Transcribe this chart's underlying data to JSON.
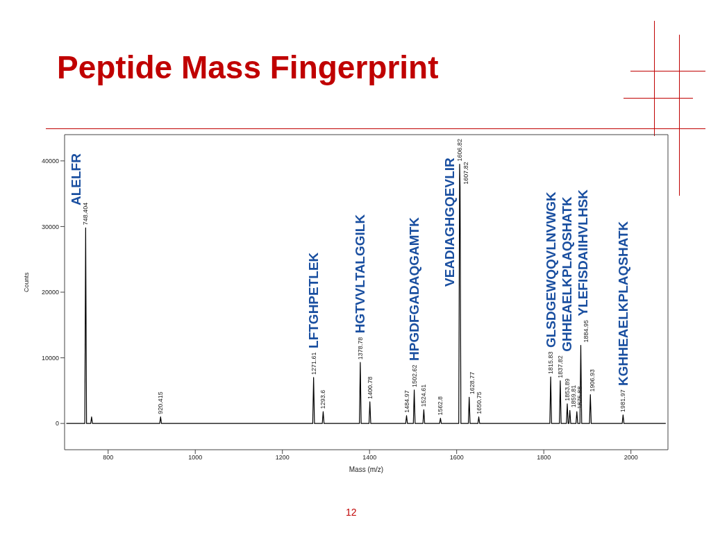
{
  "chart_data": {
    "type": "line",
    "title": "Peptide Mass Fingerprint",
    "xlabel": "Mass (m/z)",
    "ylabel": "Counts",
    "xlim": [
      700,
      2085
    ],
    "xticks": [
      800,
      1000,
      1200,
      1400,
      1600,
      1800,
      2000
    ],
    "ylim": [
      -4000,
      44000
    ],
    "yticks": [
      0,
      10000,
      20000,
      30000,
      40000
    ],
    "color": "#000000",
    "x": [
      704,
      746.4,
      748.404,
      750.4,
      760,
      762,
      764,
      918.4,
      920.415,
      922.4,
      1269.6,
      1271.61,
      1273.6,
      1291.6,
      1293.6,
      1295.6,
      1376.8,
      1378.78,
      1380.8,
      1398.8,
      1400.78,
      1402.8,
      1483,
      1484.97,
      1487,
      1500.6,
      1502.62,
      1504.6,
      1522.6,
      1524.61,
      1526.6,
      1560.8,
      1562.8,
      1564.8,
      1604.8,
      1606.82,
      1607.82,
      1609.8,
      1626.8,
      1628.77,
      1630.8,
      1648.8,
      1650.75,
      1652.8,
      1813.8,
      1815.83,
      1817.8,
      1835.8,
      1837.82,
      1839.8,
      1851.9,
      1853.89,
      1855.9,
      1857.8,
      1859.81,
      1861.8,
      1873.9,
      1875.88,
      1877.9,
      1883,
      1884.95,
      1887,
      1904.9,
      1906.93,
      1908.9,
      1980,
      1981.97,
      1984,
      2080
    ],
    "values": [
      0,
      0,
      29800,
      0,
      0,
      1000,
      0,
      0,
      1000,
      0,
      0,
      7000,
      0,
      0,
      1800,
      0,
      0,
      9300,
      0,
      0,
      3300,
      0,
      0,
      1200,
      0,
      0,
      5100,
      0,
      0,
      2100,
      0,
      0,
      800,
      0,
      0,
      39500,
      36000,
      0,
      0,
      4000,
      0,
      0,
      1000,
      0,
      0,
      7100,
      0,
      0,
      6500,
      0,
      0,
      3000,
      0,
      0,
      2000,
      0,
      0,
      1800,
      0,
      0,
      11900,
      0,
      0,
      4400,
      0,
      0,
      1300,
      0,
      0
    ],
    "annotations": [
      {
        "text": "748.404",
        "x": 748.404,
        "y": 29800
      },
      {
        "text": "920.415",
        "x": 920.415,
        "y": 1000
      },
      {
        "text": "1271.61",
        "x": 1271.61,
        "y": 7000
      },
      {
        "text": "1293.6",
        "x": 1293.6,
        "y": 1800
      },
      {
        "text": "1378.78",
        "x": 1378.78,
        "y": 9300
      },
      {
        "text": "1400.78",
        "x": 1400.78,
        "y": 3300
      },
      {
        "text": "1484.97",
        "x": 1484.97,
        "y": 1200
      },
      {
        "text": "1502.62",
        "x": 1502.62,
        "y": 5100
      },
      {
        "text": "1524.61",
        "x": 1524.61,
        "y": 2100
      },
      {
        "text": "1562.8",
        "x": 1562.8,
        "y": 800
      },
      {
        "text": "1606.82",
        "x": 1606.82,
        "y": 39500
      },
      {
        "text": "1607.82",
        "x": 1607.82,
        "y": 36000
      },
      {
        "text": "1628.77",
        "x": 1628.77,
        "y": 4000
      },
      {
        "text": "1650.75",
        "x": 1650.75,
        "y": 1000
      },
      {
        "text": "1815.83",
        "x": 1815.83,
        "y": 7100
      },
      {
        "text": "1837.82",
        "x": 1837.82,
        "y": 6500
      },
      {
        "text": "1853.89",
        "x": 1853.89,
        "y": 3000
      },
      {
        "text": "1859.81",
        "x": 1859.81,
        "y": 2000
      },
      {
        "text": "1875.88",
        "x": 1875.88,
        "y": 1800
      },
      {
        "text": "1884.95",
        "x": 1884.95,
        "y": 11900
      },
      {
        "text": "1906.93",
        "x": 1906.93,
        "y": 4400
      },
      {
        "text": "1981.97",
        "x": 1981.97,
        "y": 1300
      },
      {
        "text": "ALELFR",
        "x": 748.404,
        "y": 29800
      },
      {
        "text": "LFTGHPETLEK",
        "x": 1271.61,
        "y": 7000
      },
      {
        "text": "HGTVVLTALGGILK",
        "x": 1378.78,
        "y": 9300
      },
      {
        "text": "HPGDFGADAQGAMTK",
        "x": 1502.62,
        "y": 5100
      },
      {
        "text": "VEADIAGHGQEVLIR",
        "x": 1606.82,
        "y": 39500
      },
      {
        "text": "GLSDGEWQQVLNVWGK",
        "x": 1815.83,
        "y": 7100
      },
      {
        "text": "GHHEAELKPLAQSHATK",
        "x": 1837.82,
        "y": 6500
      },
      {
        "text": "YLEFISDAIIHVLHSK",
        "x": 1884.95,
        "y": 11900
      },
      {
        "text": "KGHHEAELKPLAQSHATK",
        "x": 1981.97,
        "y": 1300
      },
      "12"
    ]
  }
}
